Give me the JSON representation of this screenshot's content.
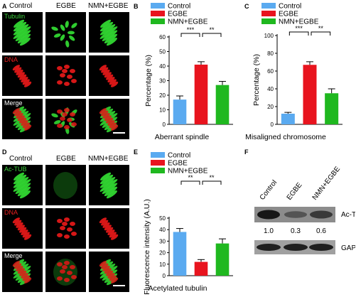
{
  "panel_letters": {
    "A": "A",
    "B": "B",
    "C": "C",
    "D": "D",
    "E": "E",
    "F": "F"
  },
  "micro_columns": [
    "Control",
    "EGBE",
    "NMN+EGBE"
  ],
  "panel_a_rows": [
    {
      "label": "Tubulin",
      "color": "#3ed23e"
    },
    {
      "label": "DNA",
      "color": "#e82020"
    },
    {
      "label": "Merge",
      "color": "#ffffff"
    }
  ],
  "panel_d_rows": [
    {
      "label": "Ac-TUB",
      "color": "#3ed23e"
    },
    {
      "label": "DNA",
      "color": "#e82020"
    },
    {
      "label": "Merge",
      "color": "#ffffff"
    }
  ],
  "colors": {
    "control": "#5aaaf0",
    "egbe": "#e8141e",
    "nmn": "#1fb81f",
    "tile_bg": "#000000"
  },
  "chart_data": [
    {
      "panel": "B",
      "type": "bar",
      "categories": [
        "Control",
        "EGBE",
        "NMN+EGBE"
      ],
      "values": [
        17,
        41,
        27
      ],
      "errors": [
        2.5,
        2,
        2.5
      ],
      "ylabel": "Percentage (%)",
      "xlabel": "Aberrant spindle",
      "ylim": [
        0,
        60
      ],
      "yticks": [
        "0",
        "10",
        "20",
        "30",
        "40",
        "50",
        "60"
      ],
      "legend": [
        "Control",
        "EGBE",
        "NMN+EGBE"
      ],
      "legend_position": "top-left",
      "significance": [
        {
          "pair": [
            0,
            1
          ],
          "label": "***"
        },
        {
          "pair": [
            1,
            2
          ],
          "label": "**"
        }
      ]
    },
    {
      "panel": "C",
      "type": "bar",
      "categories": [
        "Control",
        "EGBE",
        "NMN+EGBE"
      ],
      "values": [
        12,
        67,
        35
      ],
      "errors": [
        1.5,
        3.5,
        5
      ],
      "ylabel": "Percentage (%)",
      "xlabel": "Misaligned  chromosome",
      "ylim": [
        0,
        100
      ],
      "yticks": [
        "0",
        "20",
        "40",
        "60",
        "80",
        "100"
      ],
      "legend": [
        "Control",
        "EGBE",
        "NMN+EGBE"
      ],
      "legend_position": "top-left",
      "significance": [
        {
          "pair": [
            0,
            1
          ],
          "label": "***"
        },
        {
          "pair": [
            1,
            2
          ],
          "label": "**"
        }
      ]
    },
    {
      "panel": "E",
      "type": "bar",
      "categories": [
        "Control",
        "EGBE",
        "NMN+EGBE"
      ],
      "values": [
        38,
        12,
        28
      ],
      "errors": [
        3,
        2,
        4
      ],
      "ylabel": "Fluorescence intensity (A.U.)",
      "xlabel": "Acetylated tubulin",
      "ylim": [
        0,
        50
      ],
      "yticks": [
        "0",
        "10",
        "20",
        "30",
        "40",
        "50"
      ],
      "legend": [
        "Control",
        "EGBE",
        "NMN+EGBE"
      ],
      "legend_position": "top-left",
      "significance": [
        {
          "pair": [
            0,
            1
          ],
          "label": "**"
        },
        {
          "pair": [
            1,
            2
          ],
          "label": "**"
        }
      ]
    }
  ],
  "blot": {
    "lanes": [
      "Control",
      "EGBE",
      "NMN+EGBE"
    ],
    "ac_label": "Ac-TUB",
    "gapdh_label": "GAPDH",
    "ratios": [
      "1.0",
      "0.3",
      "0.6"
    ],
    "ac_intensity": [
      1.0,
      0.3,
      0.6
    ],
    "gapdh_intensity": [
      1.0,
      1.0,
      1.0
    ]
  }
}
